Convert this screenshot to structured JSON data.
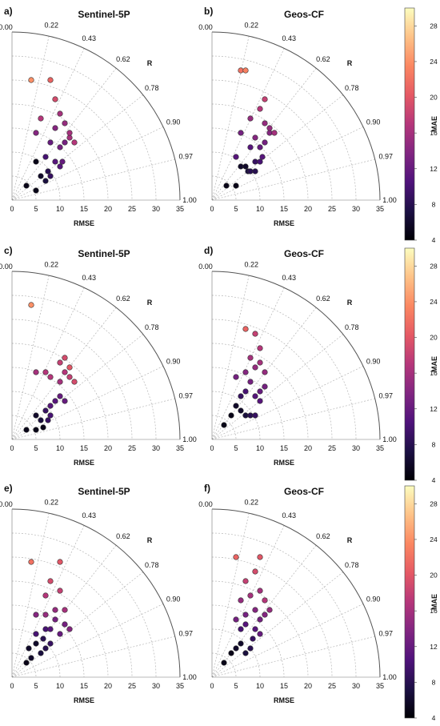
{
  "colors": {
    "cmap": [
      "#000004",
      "#1c1044",
      "#4f127b",
      "#812581",
      "#b5367a",
      "#e55964",
      "#fb8761",
      "#fec287",
      "#fcfdbf"
    ],
    "marker_edge": "#333333",
    "grid": "#b5b5b5"
  },
  "chart_data": [
    {
      "type": "scatter",
      "subtype": "taylor",
      "letter": "a)",
      "title": "Sentinel-5P",
      "xlabel": "RMSE",
      "r_label": "R",
      "rmse_ticks": [
        "0",
        "5",
        "10",
        "15",
        "20",
        "25",
        "30",
        "35"
      ],
      "r_ticks": [
        "0.00",
        "0.22",
        "0.43",
        "0.62",
        "0.78",
        "0.90",
        "0.97",
        "1.00"
      ],
      "xlim": [
        0,
        35
      ],
      "colorbar": {
        "label": "MAE",
        "min": 4,
        "max": 30,
        "ticks": [
          "4",
          "8",
          "12",
          "16",
          "20",
          "24",
          "28"
        ]
      },
      "points": [
        {
          "x": 3,
          "y": 3,
          "c": 5
        },
        {
          "x": 5,
          "y": 2,
          "c": 5
        },
        {
          "x": 5,
          "y": 8,
          "c": 5
        },
        {
          "x": 6,
          "y": 5,
          "c": 6
        },
        {
          "x": 7,
          "y": 4,
          "c": 7
        },
        {
          "x": 7.5,
          "y": 6,
          "c": 8
        },
        {
          "x": 8,
          "y": 5,
          "c": 9
        },
        {
          "x": 7,
          "y": 9,
          "c": 10
        },
        {
          "x": 9,
          "y": 8,
          "c": 11
        },
        {
          "x": 10,
          "y": 7,
          "c": 11
        },
        {
          "x": 10.5,
          "y": 8,
          "c": 12
        },
        {
          "x": 8,
          "y": 12,
          "c": 12
        },
        {
          "x": 10,
          "y": 11,
          "c": 13
        },
        {
          "x": 11,
          "y": 12,
          "c": 13
        },
        {
          "x": 5,
          "y": 14,
          "c": 14
        },
        {
          "x": 9,
          "y": 15,
          "c": 14
        },
        {
          "x": 11,
          "y": 16,
          "c": 15
        },
        {
          "x": 12,
          "y": 13,
          "c": 16
        },
        {
          "x": 13,
          "y": 12,
          "c": 17
        },
        {
          "x": 12,
          "y": 14,
          "c": 16
        },
        {
          "x": 10,
          "y": 18,
          "c": 16
        },
        {
          "x": 6,
          "y": 17,
          "c": 17
        },
        {
          "x": 9,
          "y": 21,
          "c": 19
        },
        {
          "x": 8,
          "y": 25,
          "c": 21
        },
        {
          "x": 4,
          "y": 25,
          "c": 24
        }
      ]
    },
    {
      "type": "scatter",
      "subtype": "taylor",
      "letter": "b)",
      "title": "Geos-CF",
      "xlabel": "RMSE",
      "r_label": "R",
      "rmse_ticks": [
        "0",
        "5",
        "10",
        "15",
        "20",
        "25",
        "30",
        "35"
      ],
      "r_ticks": [
        "0.00",
        "0.22",
        "0.43",
        "0.62",
        "0.78",
        "0.90",
        "0.97",
        "1.00"
      ],
      "xlim": [
        0,
        35
      ],
      "colorbar": {
        "label": "MAE",
        "min": 4,
        "max": 30,
        "ticks": [
          "4",
          "8",
          "12",
          "16",
          "20",
          "24",
          "28"
        ]
      },
      "points": [
        {
          "x": 3,
          "y": 3,
          "c": 5
        },
        {
          "x": 5,
          "y": 3,
          "c": 5
        },
        {
          "x": 6,
          "y": 7,
          "c": 6
        },
        {
          "x": 7,
          "y": 7,
          "c": 6
        },
        {
          "x": 7.5,
          "y": 6,
          "c": 7
        },
        {
          "x": 8,
          "y": 6,
          "c": 8
        },
        {
          "x": 9,
          "y": 6,
          "c": 8
        },
        {
          "x": 9,
          "y": 8,
          "c": 9
        },
        {
          "x": 10,
          "y": 8,
          "c": 10
        },
        {
          "x": 10.5,
          "y": 9,
          "c": 11
        },
        {
          "x": 8,
          "y": 11,
          "c": 11
        },
        {
          "x": 5,
          "y": 9,
          "c": 11
        },
        {
          "x": 10,
          "y": 11,
          "c": 12
        },
        {
          "x": 11,
          "y": 12,
          "c": 13
        },
        {
          "x": 12,
          "y": 14,
          "c": 14
        },
        {
          "x": 9,
          "y": 13,
          "c": 14
        },
        {
          "x": 6,
          "y": 14,
          "c": 13
        },
        {
          "x": 11,
          "y": 16,
          "c": 15
        },
        {
          "x": 12,
          "y": 15,
          "c": 15
        },
        {
          "x": 13,
          "y": 14,
          "c": 16
        },
        {
          "x": 8,
          "y": 17,
          "c": 15
        },
        {
          "x": 10,
          "y": 19,
          "c": 17
        },
        {
          "x": 11,
          "y": 21,
          "c": 18
        },
        {
          "x": 6,
          "y": 27,
          "c": 22
        },
        {
          "x": 7,
          "y": 27,
          "c": 23
        }
      ]
    },
    {
      "type": "scatter",
      "subtype": "taylor",
      "letter": "c)",
      "title": "Sentinel-5P",
      "xlabel": "RMSE",
      "r_label": "R",
      "rmse_ticks": [
        "0",
        "5",
        "10",
        "15",
        "20",
        "25",
        "30",
        "35"
      ],
      "r_ticks": [
        "0.00",
        "0.22",
        "0.43",
        "0.62",
        "0.78",
        "0.90",
        "0.97",
        "1.00"
      ],
      "xlim": [
        0,
        35
      ],
      "colorbar": {
        "label": "MAE",
        "min": 4,
        "max": 30,
        "ticks": [
          "4",
          "8",
          "12",
          "16",
          "20",
          "24",
          "28"
        ]
      },
      "points": [
        {
          "x": 3,
          "y": 2,
          "c": 5
        },
        {
          "x": 5,
          "y": 2,
          "c": 5
        },
        {
          "x": 6.5,
          "y": 2.5,
          "c": 5
        },
        {
          "x": 5,
          "y": 5,
          "c": 6
        },
        {
          "x": 6,
          "y": 4,
          "c": 7
        },
        {
          "x": 7,
          "y": 6,
          "c": 9
        },
        {
          "x": 7.5,
          "y": 4,
          "c": 9
        },
        {
          "x": 8,
          "y": 5,
          "c": 10
        },
        {
          "x": 9,
          "y": 8,
          "c": 11
        },
        {
          "x": 10,
          "y": 9,
          "c": 12
        },
        {
          "x": 11,
          "y": 8,
          "c": 12
        },
        {
          "x": 8,
          "y": 7,
          "c": 11
        },
        {
          "x": 5,
          "y": 14,
          "c": 16
        },
        {
          "x": 7,
          "y": 14,
          "c": 17
        },
        {
          "x": 8,
          "y": 13,
          "c": 17
        },
        {
          "x": 10,
          "y": 12,
          "c": 16
        },
        {
          "x": 11,
          "y": 14,
          "c": 17
        },
        {
          "x": 12,
          "y": 13,
          "c": 18
        },
        {
          "x": 13,
          "y": 12,
          "c": 19
        },
        {
          "x": 10,
          "y": 16,
          "c": 18
        },
        {
          "x": 11,
          "y": 17,
          "c": 19
        },
        {
          "x": 12,
          "y": 15,
          "c": 20
        },
        {
          "x": 4,
          "y": 28,
          "c": 24
        }
      ]
    },
    {
      "type": "scatter",
      "subtype": "taylor",
      "letter": "d)",
      "title": "Geos-CF",
      "xlabel": "RMSE",
      "r_label": "R",
      "rmse_ticks": [
        "0",
        "5",
        "10",
        "15",
        "20",
        "25",
        "30",
        "35"
      ],
      "r_ticks": [
        "0.00",
        "0.22",
        "0.43",
        "0.62",
        "0.78",
        "0.90",
        "0.97",
        "1.00"
      ],
      "xlim": [
        0,
        35
      ],
      "colorbar": {
        "label": "MAE",
        "min": 4,
        "max": 30,
        "ticks": [
          "4",
          "8",
          "12",
          "16",
          "20",
          "24",
          "28"
        ]
      },
      "points": [
        {
          "x": 2.5,
          "y": 3,
          "c": 5
        },
        {
          "x": 4,
          "y": 5,
          "c": 5
        },
        {
          "x": 5,
          "y": 7,
          "c": 6
        },
        {
          "x": 6,
          "y": 6,
          "c": 6
        },
        {
          "x": 7,
          "y": 5,
          "c": 7
        },
        {
          "x": 8,
          "y": 5,
          "c": 8
        },
        {
          "x": 9,
          "y": 5,
          "c": 9
        },
        {
          "x": 6,
          "y": 9,
          "c": 9
        },
        {
          "x": 7,
          "y": 10,
          "c": 10
        },
        {
          "x": 9,
          "y": 9,
          "c": 11
        },
        {
          "x": 10,
          "y": 8,
          "c": 11
        },
        {
          "x": 10,
          "y": 10,
          "c": 12
        },
        {
          "x": 11,
          "y": 11,
          "c": 13
        },
        {
          "x": 8,
          "y": 12,
          "c": 13
        },
        {
          "x": 5,
          "y": 13,
          "c": 13
        },
        {
          "x": 7,
          "y": 14,
          "c": 14
        },
        {
          "x": 9,
          "y": 15,
          "c": 15
        },
        {
          "x": 10,
          "y": 16,
          "c": 16
        },
        {
          "x": 11,
          "y": 14,
          "c": 15
        },
        {
          "x": 8,
          "y": 17,
          "c": 16
        },
        {
          "x": 10,
          "y": 19,
          "c": 17
        },
        {
          "x": 9,
          "y": 22,
          "c": 18
        },
        {
          "x": 7,
          "y": 23,
          "c": 21
        }
      ]
    },
    {
      "type": "scatter",
      "subtype": "taylor",
      "letter": "e)",
      "title": "Sentinel-5P",
      "xlabel": "RMSE",
      "r_label": "R",
      "rmse_ticks": [
        "0",
        "5",
        "10",
        "15",
        "20",
        "25",
        "30",
        "35"
      ],
      "r_ticks": [
        "0.00",
        "0.22",
        "0.43",
        "0.62",
        "0.78",
        "0.90",
        "0.97",
        "1.00"
      ],
      "xlim": [
        0,
        35
      ],
      "colorbar": {
        "label": "MAE",
        "min": 4,
        "max": 30,
        "ticks": [
          "4",
          "8",
          "12",
          "16",
          "20",
          "24",
          "28"
        ]
      },
      "points": [
        {
          "x": 3,
          "y": 3,
          "c": 5
        },
        {
          "x": 4,
          "y": 4,
          "c": 6
        },
        {
          "x": 3.5,
          "y": 6,
          "c": 6
        },
        {
          "x": 5,
          "y": 7,
          "c": 6
        },
        {
          "x": 6,
          "y": 5,
          "c": 7
        },
        {
          "x": 7,
          "y": 6,
          "c": 8
        },
        {
          "x": 6.5,
          "y": 8,
          "c": 8
        },
        {
          "x": 8,
          "y": 7,
          "c": 9
        },
        {
          "x": 5,
          "y": 9,
          "c": 10
        },
        {
          "x": 7,
          "y": 10,
          "c": 10
        },
        {
          "x": 8,
          "y": 10,
          "c": 11
        },
        {
          "x": 10,
          "y": 9,
          "c": 12
        },
        {
          "x": 9,
          "y": 12,
          "c": 13
        },
        {
          "x": 11,
          "y": 11,
          "c": 13
        },
        {
          "x": 12,
          "y": 10,
          "c": 14
        },
        {
          "x": 5,
          "y": 13,
          "c": 14
        },
        {
          "x": 7,
          "y": 13,
          "c": 15
        },
        {
          "x": 9,
          "y": 14,
          "c": 15
        },
        {
          "x": 11,
          "y": 14,
          "c": 16
        },
        {
          "x": 7,
          "y": 17,
          "c": 17
        },
        {
          "x": 10,
          "y": 18,
          "c": 18
        },
        {
          "x": 8,
          "y": 20,
          "c": 19
        },
        {
          "x": 10,
          "y": 24,
          "c": 20
        },
        {
          "x": 4,
          "y": 24,
          "c": 22
        }
      ]
    },
    {
      "type": "scatter",
      "subtype": "taylor",
      "letter": "f)",
      "title": "Geos-CF",
      "xlabel": "RMSE",
      "r_label": "R",
      "rmse_ticks": [
        "0",
        "5",
        "10",
        "15",
        "20",
        "25",
        "30",
        "35"
      ],
      "r_ticks": [
        "0.00",
        "0.22",
        "0.43",
        "0.62",
        "0.78",
        "0.90",
        "0.97",
        "1.00"
      ],
      "xlim": [
        0,
        35
      ],
      "colorbar": {
        "label": "MAE",
        "min": 4,
        "max": 30,
        "ticks": [
          "4",
          "8",
          "12",
          "16",
          "20",
          "24",
          "28"
        ]
      },
      "points": [
        {
          "x": 2.5,
          "y": 3,
          "c": 5
        },
        {
          "x": 4,
          "y": 5,
          "c": 5
        },
        {
          "x": 5,
          "y": 6,
          "c": 6
        },
        {
          "x": 6,
          "y": 7,
          "c": 6
        },
        {
          "x": 7,
          "y": 5,
          "c": 7
        },
        {
          "x": 8,
          "y": 6,
          "c": 8
        },
        {
          "x": 8.5,
          "y": 8,
          "c": 9
        },
        {
          "x": 6,
          "y": 10,
          "c": 10
        },
        {
          "x": 7,
          "y": 11,
          "c": 11
        },
        {
          "x": 9,
          "y": 10,
          "c": 11
        },
        {
          "x": 10,
          "y": 9,
          "c": 12
        },
        {
          "x": 10,
          "y": 12,
          "c": 13
        },
        {
          "x": 5,
          "y": 12,
          "c": 13
        },
        {
          "x": 7,
          "y": 13,
          "c": 13
        },
        {
          "x": 9,
          "y": 14,
          "c": 14
        },
        {
          "x": 11,
          "y": 13,
          "c": 14
        },
        {
          "x": 12,
          "y": 14,
          "c": 15
        },
        {
          "x": 6,
          "y": 16,
          "c": 15
        },
        {
          "x": 8,
          "y": 17,
          "c": 16
        },
        {
          "x": 10,
          "y": 18,
          "c": 16
        },
        {
          "x": 11,
          "y": 16,
          "c": 17
        },
        {
          "x": 7,
          "y": 20,
          "c": 18
        },
        {
          "x": 9,
          "y": 22,
          "c": 19
        },
        {
          "x": 10,
          "y": 25,
          "c": 20
        },
        {
          "x": 5,
          "y": 25,
          "c": 21
        }
      ]
    }
  ]
}
